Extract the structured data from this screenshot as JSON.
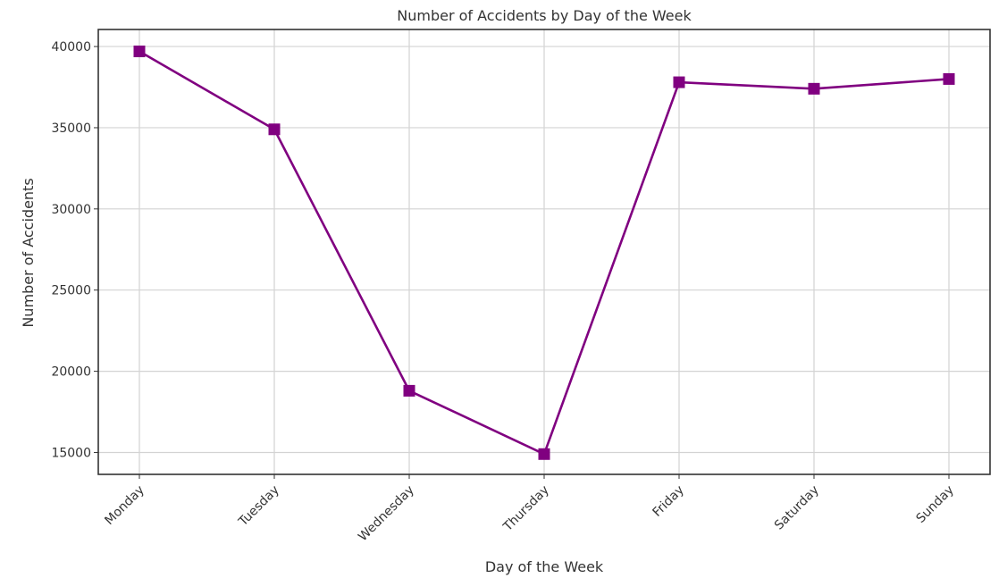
{
  "chart_data": {
    "type": "line",
    "title": "Number of Accidents by Day of the Week",
    "xlabel": "Day of the Week",
    "ylabel": "Number of Accidents",
    "categories": [
      "Monday",
      "Tuesday",
      "Wednesday",
      "Thursday",
      "Friday",
      "Saturday",
      "Sunday"
    ],
    "series": [
      {
        "values": [
          39700,
          34900,
          18800,
          14900,
          37800,
          37400,
          38000
        ]
      }
    ],
    "yticks": [
      15000,
      20000,
      25000,
      30000,
      35000,
      40000
    ],
    "ylim": [
      13650,
      41050
    ],
    "grid": true,
    "line_color": "#800080",
    "marker": "square"
  }
}
